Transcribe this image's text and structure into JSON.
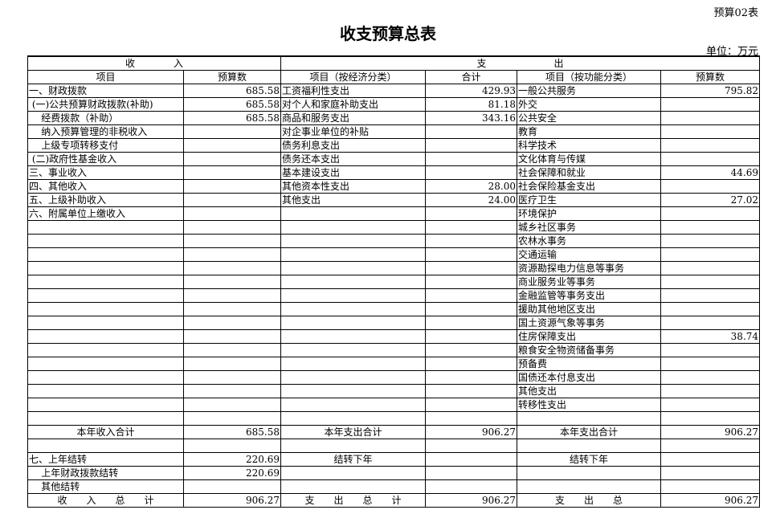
{
  "form_no": "预算02表",
  "title": "收支预算总表",
  "unit": "单位：万元",
  "header": {
    "income": "收　　　　入",
    "expense": "支　　　　　　　出",
    "columns": [
      "项目",
      "预算数",
      "项目（按经济分类）",
      "合计",
      "项目（按功能分类）",
      "预算数"
    ]
  },
  "rows": [
    [
      "一、财政拨款",
      "685.58",
      "工资福利性支出",
      "429.93",
      "一般公共服务",
      "795.82"
    ],
    [
      " (一)公共预算财政拨款(补助)",
      "685.58",
      "对个人和家庭补助支出",
      "81.18",
      "外交",
      ""
    ],
    [
      "    经费拨款（补助）",
      "685.58",
      "商品和服务支出",
      "343.16",
      "公共安全",
      ""
    ],
    [
      "    纳入预算管理的非税收入",
      "",
      "对企事业单位的补贴",
      "",
      "教育",
      ""
    ],
    [
      "    上级专项转移支付",
      "",
      "债务利息支出",
      "",
      "科学技术",
      ""
    ],
    [
      " (二)政府性基金收入",
      "",
      "债务还本支出",
      "",
      "文化体育与传媒",
      ""
    ],
    [
      "三、事业收入",
      "",
      "基本建设支出",
      "",
      "社会保障和就业",
      "44.69"
    ],
    [
      "四、其他收入",
      "",
      "其他资本性支出",
      "28.00",
      "社会保险基金支出",
      ""
    ],
    [
      "五、上级补助收入",
      "",
      "其他支出",
      "24.00",
      "医疗卫生",
      "27.02"
    ],
    [
      "六、附属单位上缴收入",
      "",
      "",
      "",
      "环境保护",
      ""
    ],
    [
      "",
      "",
      "",
      "",
      "城乡社区事务",
      ""
    ],
    [
      "",
      "",
      "",
      "",
      "农林水事务",
      ""
    ],
    [
      "",
      "",
      "",
      "",
      "交通运输",
      ""
    ],
    [
      "",
      "",
      "",
      "",
      "资源勘探电力信息等事务",
      ""
    ],
    [
      "",
      "",
      "",
      "",
      "商业服务业等事务",
      ""
    ],
    [
      "",
      "",
      "",
      "",
      "金融监管等事务支出",
      ""
    ],
    [
      "",
      "",
      "",
      "",
      "援助其他地区支出",
      ""
    ],
    [
      "",
      "",
      "",
      "",
      "国土资源气象等事务",
      ""
    ],
    [
      "",
      "",
      "",
      "",
      "住房保障支出",
      "38.74"
    ],
    [
      "",
      "",
      "",
      "",
      "粮食安全物资储备事务",
      ""
    ],
    [
      "",
      "",
      "",
      "",
      "预备费",
      ""
    ],
    [
      "",
      "",
      "",
      "",
      "国债还本付息支出",
      ""
    ],
    [
      "",
      "",
      "",
      "",
      "其他支出",
      ""
    ],
    [
      "",
      "",
      "",
      "",
      "转移性支出",
      ""
    ],
    [
      "",
      "",
      "",
      "",
      "",
      ""
    ]
  ],
  "summary_rows": [
    {
      "cells": [
        "本年收入合计",
        "685.58",
        "本年支出合计",
        "906.27",
        "本年支出合计",
        "906.27"
      ],
      "center": [
        true,
        false,
        true,
        false,
        true,
        false
      ]
    },
    {
      "cells": [
        "",
        "",
        "",
        "",
        "",
        ""
      ],
      "center": [
        false,
        false,
        false,
        false,
        false,
        false
      ]
    },
    {
      "cells": [
        "七、上年结转",
        "220.69",
        "结转下年",
        "",
        "结转下年",
        ""
      ],
      "center": [
        false,
        false,
        true,
        false,
        true,
        false
      ]
    },
    {
      "cells": [
        "    上年财政拨款结转",
        "220.69",
        "",
        "",
        "",
        ""
      ],
      "center": [
        false,
        false,
        false,
        false,
        false,
        false
      ]
    },
    {
      "cells": [
        "    其他结转",
        "",
        "",
        "",
        "",
        ""
      ],
      "center": [
        false,
        false,
        false,
        false,
        false,
        false
      ]
    },
    {
      "cells": [
        "收　　入　　总　　计",
        "906.27",
        "支　　出　　总　　计",
        "906.27",
        "支　　出　　总",
        "906.27"
      ],
      "center": [
        true,
        false,
        true,
        false,
        true,
        false
      ]
    }
  ]
}
